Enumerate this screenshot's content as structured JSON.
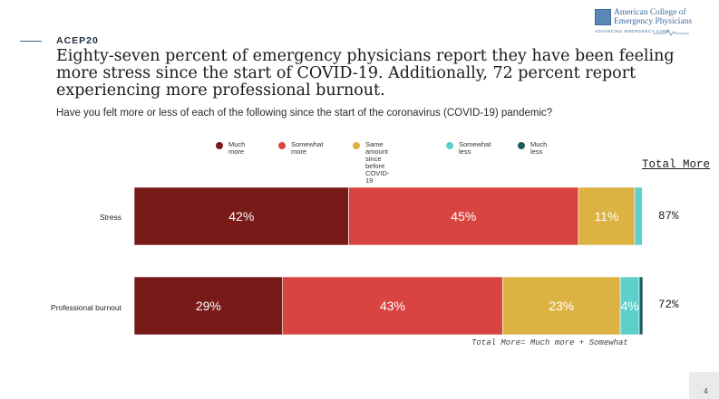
{
  "header": {
    "tag": "ACEP20",
    "headline": "Eighty-seven percent of emergency physicians report they have been feeling more stress since the start of COVID-19. Additionally, 72 percent report experiencing more professional burnout.",
    "question": "Have you felt more or less of each of the following since the start of the coronavirus (COVID-19) pandemic?"
  },
  "logo": {
    "name": "American College of Emergency Physicians",
    "line1": "American College of",
    "line2": "Emergency Physicians",
    "tagline": "ADVANCING EMERGENCY CARE"
  },
  "chart_data": {
    "type": "bar",
    "orientation": "horizontal",
    "stacked": true,
    "categories": [
      "Stress",
      "Professional burnout"
    ],
    "series": [
      {
        "name": "Much more",
        "color": "#771a18",
        "values": [
          42,
          29
        ],
        "labels": [
          "42%",
          "29%"
        ]
      },
      {
        "name": "Somewhat more",
        "color": "#d84541",
        "values": [
          45,
          43
        ],
        "labels": [
          "45%",
          "43%"
        ]
      },
      {
        "name": "Same amount since before COVID-19",
        "color": "#dcb243",
        "values": [
          11,
          23
        ],
        "labels": [
          "11%",
          "23%"
        ]
      },
      {
        "name": "Somewhat less",
        "color": "#5fcfcb",
        "values": [
          1.5,
          3.7
        ],
        "labels": [
          "",
          "4%"
        ]
      },
      {
        "name": "Much less",
        "color": "#215b5c",
        "values": [
          0.1,
          0.7
        ],
        "labels": [
          "",
          ""
        ]
      }
    ],
    "xlim": [
      0,
      100
    ],
    "legend_position": "top",
    "total_more_header": "Total More",
    "total_more": [
      "87%",
      "72%"
    ],
    "footnote": "Total More= Much more + Somewhat"
  },
  "legend_labels": {
    "much_more": "Much more",
    "somewhat_more": "Somewhat more",
    "same_line1": "Same amount since",
    "same_line2": "before COVID-19",
    "somewhat_less": "Somewhat less",
    "much_less": "Much less"
  },
  "page": {
    "number": "4"
  }
}
